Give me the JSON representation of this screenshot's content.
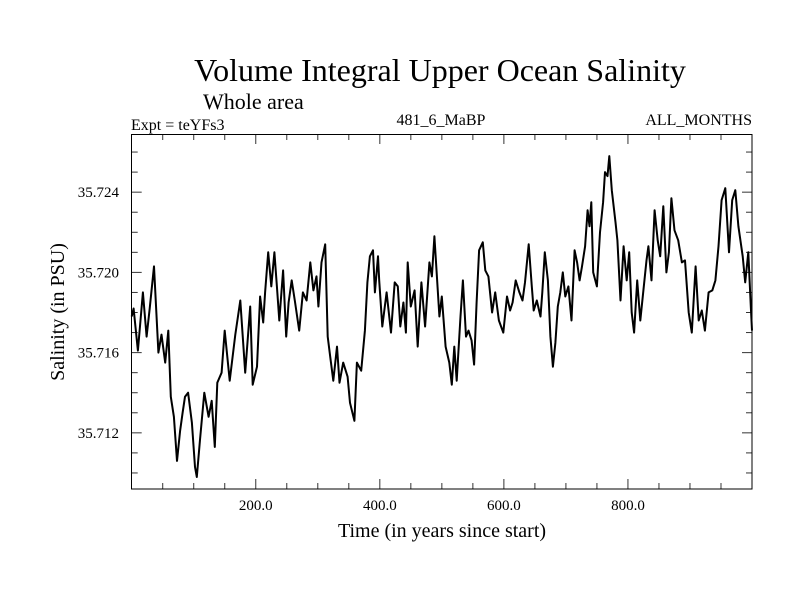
{
  "chart_data": {
    "type": "line",
    "title": "Volume Integral Upper Ocean Salinity",
    "subtitle": "Whole area",
    "annotations": {
      "left": "Expt = teYFs3",
      "center": "481_6_MaBP",
      "right": "ALL_MONTHS"
    },
    "xlabel": "Time (in years since start)",
    "ylabel": "Salinity (in PSU)",
    "xlim": [
      0,
      1000
    ],
    "ylim": [
      35.7092,
      35.7269
    ],
    "x_major_ticks": [
      200,
      400,
      600,
      800
    ],
    "x_tick_labels": [
      "200.0",
      "400.0",
      "600.0",
      "800.0"
    ],
    "x_minor_step": 50,
    "y_major_ticks": [
      35.712,
      35.716,
      35.72,
      35.724
    ],
    "y_tick_labels": [
      "35.712",
      "35.716",
      "35.720",
      "35.724"
    ],
    "y_minor_step": 0.001,
    "grid": false,
    "legend": "none",
    "line_color": "#000000",
    "series": [
      {
        "name": "Salinity",
        "x": [
          0,
          3,
          10,
          18,
          24,
          29,
          36,
          43,
          48,
          54,
          59,
          63,
          68,
          73,
          78,
          82,
          86,
          91,
          97,
          102,
          105,
          110,
          117,
          124,
          129,
          134,
          138,
          145,
          150,
          158,
          167,
          175,
          183,
          191,
          195,
          202,
          207,
          212,
          215,
          220,
          225,
          230,
          234,
          238,
          244,
          249,
          253,
          258,
          263,
          270,
          276,
          282,
          288,
          293,
          298,
          301,
          306,
          312,
          316,
          320,
          325,
          331,
          335,
          341,
          348,
          352,
          359,
          363,
          370,
          376,
          380,
          384,
          389,
          392,
          397,
          399,
          404,
          411,
          418,
          424,
          429,
          433,
          438,
          442,
          445,
          450,
          456,
          461,
          467,
          473,
          480,
          484,
          488,
          492,
          496,
          500,
          506,
          512,
          516,
          520,
          524,
          530,
          534,
          539,
          543,
          548,
          552,
          556,
          560,
          566,
          570,
          575,
          581,
          586,
          592,
          599,
          605,
          610,
          614,
          619,
          625,
          630,
          634,
          640,
          645,
          648,
          653,
          659,
          662,
          666,
          671,
          675,
          679,
          683,
          687,
          691,
          695,
          699,
          704,
          709,
          714,
          718,
          722,
          726,
          731,
          735,
          738,
          741,
          744,
          750,
          755,
          760,
          763,
          767,
          770,
          774,
          780,
          783,
          788,
          793,
          798,
          802,
          806,
          810,
          815,
          820,
          825,
          830,
          833,
          838,
          843,
          848,
          852,
          857,
          862,
          866,
          870,
          875,
          881,
          887,
          892,
          898,
          903,
          909,
          914,
          919,
          924,
          930,
          936,
          941,
          946,
          951,
          957,
          963,
          968,
          973,
          978,
          985,
          989,
          994,
          998,
          1000
        ],
        "y": [
          35.7178,
          35.7182,
          35.7161,
          35.719,
          35.7168,
          35.7182,
          35.7203,
          35.716,
          35.7169,
          35.7155,
          35.7171,
          35.7138,
          35.7128,
          35.7106,
          35.7121,
          35.713,
          35.7138,
          35.714,
          35.7125,
          35.7103,
          35.7098,
          35.7116,
          35.714,
          35.7128,
          35.7136,
          35.7113,
          35.7145,
          35.715,
          35.7171,
          35.7146,
          35.7169,
          35.7186,
          35.715,
          35.7183,
          35.7144,
          35.7153,
          35.7188,
          35.7175,
          35.719,
          35.721,
          35.7193,
          35.721,
          35.7193,
          35.7176,
          35.7201,
          35.7168,
          35.7185,
          35.7196,
          35.7186,
          35.7171,
          35.719,
          35.7186,
          35.7205,
          35.7191,
          35.7198,
          35.7183,
          35.7205,
          35.7214,
          35.7168,
          35.7158,
          35.7146,
          35.7163,
          35.7145,
          35.7155,
          35.7148,
          35.7135,
          35.7126,
          35.7155,
          35.7151,
          35.7171,
          35.7195,
          35.7208,
          35.7211,
          35.719,
          35.7208,
          35.7196,
          35.7173,
          35.719,
          35.717,
          35.7195,
          35.7193,
          35.7173,
          35.7185,
          35.717,
          35.7205,
          35.7183,
          35.7191,
          35.7163,
          35.7195,
          35.7173,
          35.7205,
          35.7198,
          35.7218,
          35.7198,
          35.7178,
          35.7188,
          35.7163,
          35.7155,
          35.7144,
          35.7163,
          35.7146,
          35.7178,
          35.7196,
          35.7168,
          35.7171,
          35.7166,
          35.7154,
          35.7185,
          35.7211,
          35.7215,
          35.7201,
          35.7198,
          35.718,
          35.719,
          35.7176,
          35.717,
          35.7188,
          35.7181,
          35.7185,
          35.7196,
          35.719,
          35.7186,
          35.7195,
          35.7214,
          35.7193,
          35.7181,
          35.7186,
          35.7178,
          35.719,
          35.721,
          35.7196,
          35.7168,
          35.7153,
          35.7165,
          35.7183,
          35.719,
          35.72,
          35.7188,
          35.7193,
          35.7176,
          35.7211,
          35.7205,
          35.7196,
          35.7203,
          35.7213,
          35.7231,
          35.7223,
          35.7235,
          35.72,
          35.7193,
          35.722,
          35.7235,
          35.725,
          35.7248,
          35.7258,
          35.7241,
          35.7225,
          35.7216,
          35.7186,
          35.7213,
          35.7196,
          35.721,
          35.718,
          35.717,
          35.7196,
          35.7176,
          35.7191,
          35.7206,
          35.7213,
          35.7196,
          35.7231,
          35.7216,
          35.7208,
          35.7233,
          35.72,
          35.721,
          35.7237,
          35.7221,
          35.7216,
          35.7205,
          35.7206,
          35.718,
          35.717,
          35.7203,
          35.7176,
          35.7181,
          35.7171,
          35.719,
          35.7191,
          35.7196,
          35.7213,
          35.7236,
          35.7242,
          35.721,
          35.7236,
          35.7241,
          35.7223,
          35.7208,
          35.7195,
          35.721,
          35.7183,
          35.7171
        ]
      }
    ]
  }
}
